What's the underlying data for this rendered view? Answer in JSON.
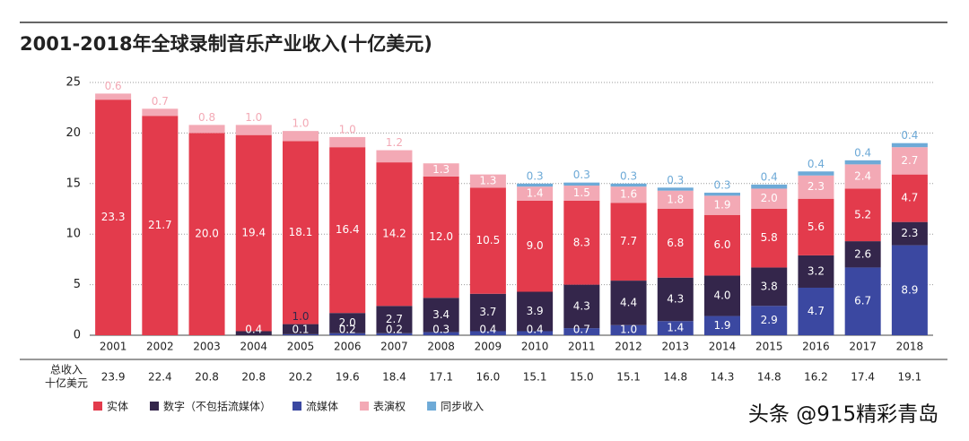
{
  "chart_data": {
    "type": "stacked_bar",
    "title": "2001-2018年全球录制音乐产业收入(十亿美元)",
    "categories": [
      "2001",
      "2002",
      "2003",
      "2004",
      "2005",
      "2006",
      "2007",
      "2008",
      "2009",
      "2010",
      "2011",
      "2012",
      "2013",
      "2014",
      "2015",
      "2016",
      "2017",
      "2018"
    ],
    "series": [
      {
        "name": "实体",
        "color": "#e33b4c",
        "values": [
          23.3,
          21.7,
          20.0,
          19.4,
          18.1,
          16.4,
          14.2,
          12.0,
          10.5,
          9.0,
          8.3,
          7.7,
          6.8,
          6.0,
          5.8,
          5.6,
          5.2,
          4.7
        ],
        "value_labels": [
          "23.3",
          "21.7",
          "20.0",
          "19.4",
          "18.1",
          "16.4",
          "14.2",
          "12.0",
          "10.5",
          "9.0",
          "8.3",
          "7.7",
          "6.8",
          "6.0",
          "5.8",
          "5.6",
          "5.2",
          "4.7"
        ]
      },
      {
        "name": "数字（不包括流媒体）",
        "color": "#34264b",
        "values": [
          null,
          null,
          null,
          0.4,
          1.0,
          2.0,
          2.7,
          3.4,
          3.7,
          3.9,
          4.3,
          4.4,
          4.3,
          4.0,
          3.8,
          3.2,
          2.6,
          2.3
        ],
        "value_labels": [
          null,
          null,
          null,
          "0.4",
          "1.0",
          "2.0",
          "2.7",
          "3.4",
          "3.7",
          "3.9",
          "4.3",
          "4.4",
          "4.3",
          "4.0",
          "3.8",
          "3.2",
          "2.6",
          "2.3"
        ]
      },
      {
        "name": "流媒体",
        "color": "#3b48a1",
        "values": [
          null,
          null,
          null,
          null,
          0.1,
          0.2,
          0.2,
          0.3,
          0.4,
          0.4,
          0.7,
          1.0,
          1.4,
          1.9,
          2.9,
          4.7,
          6.7,
          8.9
        ],
        "value_labels": [
          null,
          null,
          null,
          null,
          "0.1",
          "0.2",
          "0.2",
          "0.3",
          "0.4",
          "0.4",
          "0.7",
          "1.0",
          "1.4",
          "1.9",
          "2.9",
          "4.7",
          "6.7",
          "8.9"
        ]
      },
      {
        "name": "表演权",
        "color": "#f3a9b5",
        "values": [
          0.6,
          0.7,
          0.8,
          1.0,
          1.0,
          1.0,
          1.2,
          1.3,
          1.3,
          1.4,
          1.5,
          1.6,
          1.8,
          1.9,
          2.0,
          2.3,
          2.4,
          2.7
        ],
        "value_labels": [
          "0.6",
          "0.7",
          "0.8",
          "1.0",
          "1.0",
          "1.0",
          "1.2",
          "1.3",
          "1.3",
          "1.4",
          "1.5",
          "1.6",
          "1.8",
          "1.9",
          "2.0",
          "2.3",
          "2.4",
          "2.7"
        ]
      },
      {
        "name": "同步收入",
        "color": "#6eaad7",
        "values": [
          null,
          null,
          null,
          null,
          null,
          null,
          null,
          null,
          null,
          0.3,
          0.3,
          0.3,
          0.3,
          0.3,
          0.4,
          0.4,
          0.4,
          0.4
        ],
        "value_labels": [
          null,
          null,
          null,
          null,
          null,
          null,
          null,
          null,
          null,
          "0.3",
          "0.3",
          "0.3",
          "0.3",
          "0.3",
          "0.4",
          "0.4",
          "0.4",
          "0.4"
        ]
      }
    ],
    "ylim": [
      0,
      25
    ],
    "yticks": [
      0,
      5,
      10,
      15,
      20,
      25
    ],
    "grid": true,
    "totals": {
      "label": [
        "总收入",
        "十亿美元"
      ],
      "values": [
        23.9,
        22.4,
        20.8,
        20.8,
        20.2,
        19.6,
        18.4,
        17.1,
        16.0,
        15.1,
        15.0,
        15.1,
        14.8,
        14.3,
        14.8,
        16.2,
        17.4,
        19.1
      ],
      "value_labels": [
        "23.9",
        "22.4",
        "20.8",
        "20.8",
        "20.2",
        "19.6",
        "18.4",
        "17.1",
        "16.0",
        "15.1",
        "15.0",
        "15.1",
        "14.8",
        "14.3",
        "14.8",
        "16.2",
        "17.4",
        "19.1"
      ]
    },
    "watermark": "头条 @915精彩青岛"
  }
}
